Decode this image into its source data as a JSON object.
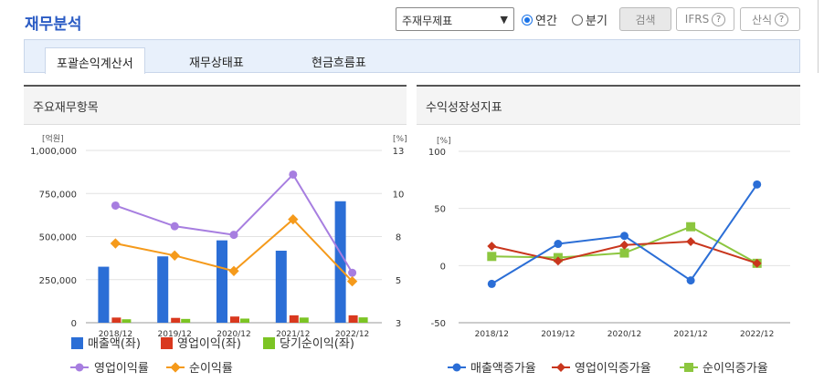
{
  "header": {
    "title": "재무분석",
    "select_value": "주재무제표",
    "radio_annual": "연간",
    "radio_quarter": "분기",
    "search_button": "검색",
    "ifrs_button": "IFRS",
    "formula_button": "산식"
  },
  "tabs": [
    {
      "label": "포괄손익계산서",
      "active": true
    },
    {
      "label": "재무상태표",
      "active": false
    },
    {
      "label": "현금흐름표",
      "active": false
    }
  ],
  "panels": {
    "left_title": "주요재무항목",
    "right_title": "수익성장성지표"
  },
  "colors": {
    "sales": "#2b6ed6",
    "operating": "#d9381e",
    "net": "#7cc424",
    "op_rate": "#a77ee0",
    "net_rate": "#f59a1b",
    "sales_growth": "#2b6ed6",
    "op_growth": "#c9361d",
    "net_growth": "#8cc63f"
  },
  "chart_data": [
    {
      "type": "bar",
      "categories": [
        "2018/12",
        "2019/12",
        "2020/12",
        "2021/12",
        "2022/12"
      ],
      "left_axis_unit": "[억원]",
      "right_axis_unit": "[%]",
      "left_ticks": [
        "1,000,000",
        "750,000",
        "500,000",
        "250,000",
        "0"
      ],
      "right_ticks": [
        "13",
        "10",
        "8",
        "5",
        "3"
      ],
      "ylim": [
        0,
        1000000
      ],
      "y2lim": [
        3,
        13
      ],
      "series": [
        {
          "name": "매출액(좌)",
          "type": "bar",
          "values": [
            325000,
            385000,
            478000,
            418000,
            705000
          ]
        },
        {
          "name": "영업이익(좌)",
          "type": "bar",
          "values": [
            30000,
            28000,
            36000,
            43000,
            43000
          ]
        },
        {
          "name": "당기순이익(좌)",
          "type": "bar",
          "values": [
            20000,
            22000,
            24000,
            30000,
            31000
          ]
        },
        {
          "name": "영업이익률",
          "type": "line",
          "values": [
            9.8,
            8.6,
            8.1,
            11.6,
            5.9
          ]
        },
        {
          "name": "순이익률",
          "type": "line",
          "values": [
            7.6,
            6.9,
            6.0,
            9.0,
            5.4
          ]
        }
      ]
    },
    {
      "type": "line",
      "categories": [
        "2018/12",
        "2019/12",
        "2020/12",
        "2021/12",
        "2022/12"
      ],
      "axis_unit": "[%]",
      "ticks": [
        "100",
        "50",
        "0",
        "-50"
      ],
      "ylim": [
        -50,
        100
      ],
      "series": [
        {
          "name": "매출액증가율",
          "values": [
            -16,
            19,
            26,
            -13,
            71
          ]
        },
        {
          "name": "영업이익증가율",
          "values": [
            17,
            4,
            18,
            21,
            2
          ]
        },
        {
          "name": "순이익증가율",
          "values": [
            8,
            7,
            11,
            34,
            2
          ]
        }
      ]
    }
  ]
}
